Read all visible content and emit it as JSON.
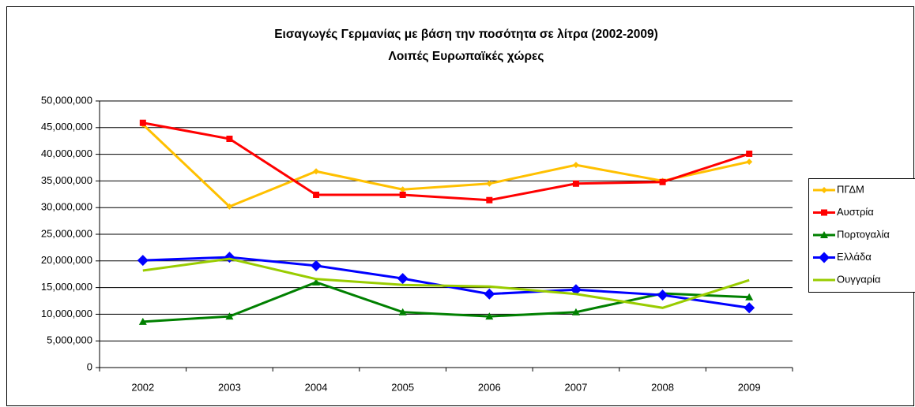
{
  "chart_data": {
    "type": "line",
    "title": "Εισαγωγές Γερμανίας με βάση την ποσότητα σε λίτρα (2002-2009)",
    "subtitle": "Λοιπές Ευρωπαϊκές χώρες",
    "categories": [
      "2002",
      "2003",
      "2004",
      "2005",
      "2006",
      "2007",
      "2008",
      "2009"
    ],
    "series": [
      {
        "name": "ΠΓΔΜ",
        "color": "#ffc000",
        "marker": "diamond-small",
        "values": [
          45600000,
          30200000,
          36800000,
          33400000,
          34500000,
          38000000,
          35000000,
          38600000
        ]
      },
      {
        "name": "Αυστρία",
        "color": "#ff0000",
        "marker": "square",
        "values": [
          45900000,
          42900000,
          32400000,
          32400000,
          31400000,
          34500000,
          34800000,
          40100000
        ]
      },
      {
        "name": "Πορτογαλία",
        "color": "#008000",
        "marker": "triangle",
        "values": [
          8600000,
          9600000,
          16000000,
          10400000,
          9600000,
          10400000,
          13900000,
          13200000
        ]
      },
      {
        "name": "Ελλάδα",
        "color": "#0000ff",
        "marker": "diamond",
        "values": [
          20100000,
          20700000,
          19100000,
          16700000,
          13800000,
          14600000,
          13600000,
          11200000
        ]
      },
      {
        "name": "Ουγγαρία",
        "color": "#99cc00",
        "marker": "none",
        "values": [
          18200000,
          20400000,
          16600000,
          15500000,
          15200000,
          13800000,
          11200000,
          16400000
        ]
      }
    ],
    "ylim": [
      0,
      50000000
    ],
    "yticks": [
      0,
      {
        "value": 5000000,
        "label": "5,000,000"
      },
      {
        "value": 10000000,
        "label": "10,000,000"
      },
      {
        "value": 15000000,
        "label": "15,000,000"
      },
      {
        "value": 20000000,
        "label": "20,000,000"
      },
      {
        "value": 25000000,
        "label": "25,000,000"
      },
      {
        "value": 30000000,
        "label": "30,000,000"
      },
      {
        "value": 35000000,
        "label": "35,000,000"
      },
      {
        "value": 40000000,
        "label": "40,000,000"
      },
      {
        "value": 45000000,
        "label": "45,000,000"
      },
      {
        "value": 50000000,
        "label": "50,000,000"
      }
    ],
    "grid": true,
    "legend": "right"
  }
}
